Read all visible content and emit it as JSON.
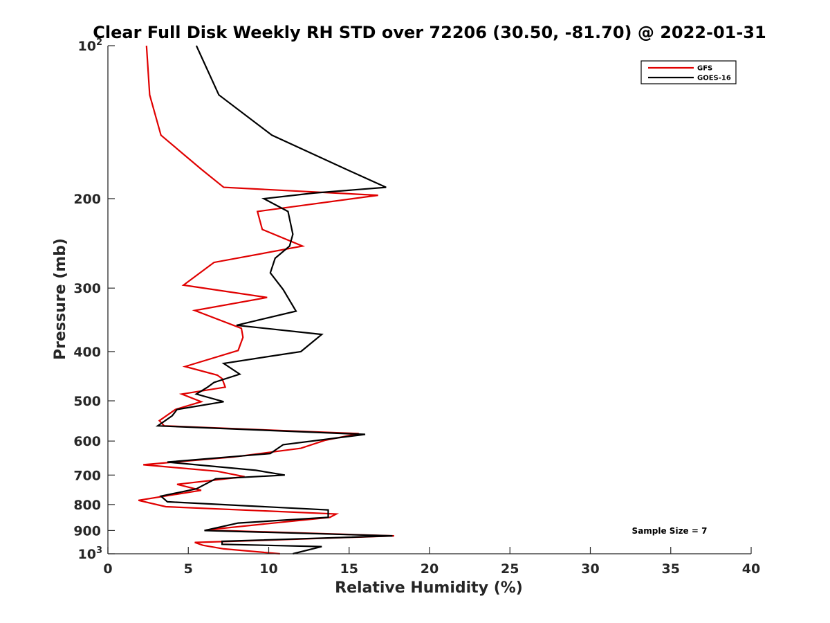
{
  "chart_data": {
    "type": "line",
    "title": "Clear Full Disk Weekly RH STD over 72206 (30.50, -81.70) @ 2022-01-31",
    "xlabel": "Relative Humidity (%)",
    "ylabel": "Pressure (mb)",
    "xlim": [
      0,
      40
    ],
    "ylim": [
      100,
      1000
    ],
    "y_scale": "log",
    "y_reversed": true,
    "grid": false,
    "legend_position": "top-right",
    "x_ticks": [
      0,
      5,
      10,
      15,
      20,
      25,
      30,
      35,
      40
    ],
    "y_ticks": [
      {
        "value": 100,
        "base": "10",
        "exp": "2"
      },
      {
        "value": 200,
        "label": "200"
      },
      {
        "value": 300,
        "label": "300"
      },
      {
        "value": 400,
        "label": "400"
      },
      {
        "value": 500,
        "label": "500"
      },
      {
        "value": 600,
        "label": "600"
      },
      {
        "value": 700,
        "label": "700"
      },
      {
        "value": 800,
        "label": "800"
      },
      {
        "value": 900,
        "label": "900"
      },
      {
        "value": 1000,
        "base": "10",
        "exp": "3"
      }
    ],
    "annotation": "Sample Size = 7",
    "series": [
      {
        "name": "GFS",
        "color": "#e00000",
        "points": [
          [
            2.4,
            100
          ],
          [
            2.6,
            125
          ],
          [
            3.3,
            150
          ],
          [
            5.8,
            175
          ],
          [
            7.2,
            190
          ],
          [
            16.8,
            197
          ],
          [
            9.3,
            212
          ],
          [
            9.6,
            230
          ],
          [
            12.1,
            248
          ],
          [
            6.6,
            267
          ],
          [
            4.7,
            296
          ],
          [
            9.9,
            313
          ],
          [
            5.4,
            332
          ],
          [
            8.3,
            360
          ],
          [
            8.4,
            375
          ],
          [
            8.1,
            398
          ],
          [
            4.8,
            428
          ],
          [
            6.8,
            445
          ],
          [
            7.1,
            452
          ],
          [
            7.3,
            470
          ],
          [
            4.6,
            485
          ],
          [
            5.8,
            502
          ],
          [
            4.2,
            520
          ],
          [
            3.2,
            547
          ],
          [
            3.5,
            560
          ],
          [
            15.6,
            580
          ],
          [
            13.5,
            598
          ],
          [
            12.0,
            620
          ],
          [
            7.8,
            645
          ],
          [
            2.2,
            668
          ],
          [
            6.8,
            688
          ],
          [
            8.5,
            705
          ],
          [
            4.3,
            730
          ],
          [
            5.8,
            750
          ],
          [
            1.9,
            785
          ],
          [
            3.6,
            808
          ],
          [
            14.2,
            835
          ],
          [
            13.8,
            848
          ],
          [
            10.0,
            872
          ],
          [
            6.1,
            898
          ],
          [
            17.8,
            922
          ],
          [
            10.0,
            940
          ],
          [
            5.4,
            950
          ],
          [
            5.9,
            962
          ],
          [
            7.2,
            978
          ],
          [
            10.7,
            1000
          ]
        ]
      },
      {
        "name": "GOES-16",
        "color": "#000000",
        "points": [
          [
            5.5,
            100
          ],
          [
            6.9,
            125
          ],
          [
            10.2,
            150
          ],
          [
            14.8,
            175
          ],
          [
            17.3,
            190
          ],
          [
            12.8,
            195
          ],
          [
            9.7,
            200
          ],
          [
            11.2,
            212
          ],
          [
            11.5,
            235
          ],
          [
            11.3,
            248
          ],
          [
            10.4,
            262
          ],
          [
            10.1,
            280
          ],
          [
            10.9,
            302
          ],
          [
            11.7,
            333
          ],
          [
            8.0,
            355
          ],
          [
            13.3,
            370
          ],
          [
            12.0,
            400
          ],
          [
            7.2,
            422
          ],
          [
            8.2,
            443
          ],
          [
            6.6,
            460
          ],
          [
            6.2,
            470
          ],
          [
            5.5,
            485
          ],
          [
            7.2,
            502
          ],
          [
            4.3,
            520
          ],
          [
            4.0,
            535
          ],
          [
            3.1,
            560
          ],
          [
            16.0,
            582
          ],
          [
            10.9,
            610
          ],
          [
            10.1,
            635
          ],
          [
            3.7,
            660
          ],
          [
            9.2,
            685
          ],
          [
            11.0,
            700
          ],
          [
            6.7,
            712
          ],
          [
            5.5,
            745
          ],
          [
            3.3,
            770
          ],
          [
            3.7,
            790
          ],
          [
            13.7,
            820
          ],
          [
            13.7,
            848
          ],
          [
            8.1,
            870
          ],
          [
            6.0,
            900
          ],
          [
            17.7,
            922
          ],
          [
            7.1,
            945
          ],
          [
            7.1,
            958
          ],
          [
            13.3,
            968
          ],
          [
            11.5,
            1000
          ]
        ]
      }
    ]
  }
}
